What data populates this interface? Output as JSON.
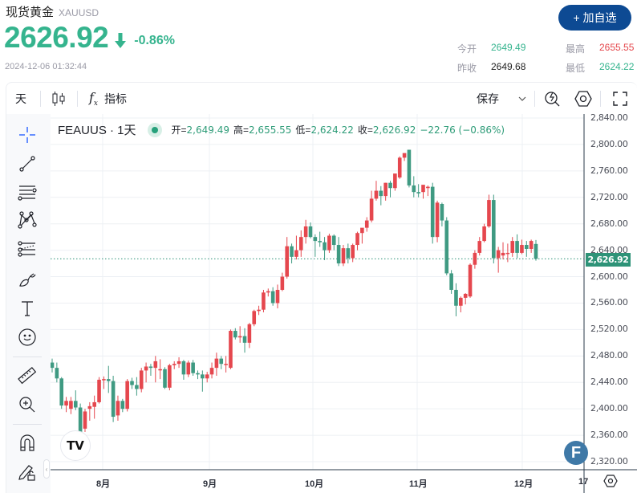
{
  "header": {
    "title": "现货黄金",
    "symbol": "XAUUSD",
    "price": "2626.92",
    "change_pct": "-0.86%",
    "timestamp": "2024-12-06 01:32:44",
    "add_watchlist_label": "+ 加自选",
    "stats": {
      "open_label": "今开",
      "open_value": "2649.49",
      "prev_close_label": "昨收",
      "prev_close_value": "2649.68",
      "high_label": "最高",
      "high_value": "2655.55",
      "low_label": "最低",
      "low_value": "2624.22"
    }
  },
  "colors": {
    "down": "#35b48e",
    "up": "#e5484d",
    "candle_up": "#e5474e",
    "candle_down": "#3f9a82",
    "brand": "#0d4a93"
  },
  "toolbar": {
    "interval_label": "天",
    "chart_type_icon": "candlestick-icon",
    "indicators_label": "指标",
    "save_label": "保存"
  },
  "left_tools": [
    "crosshair-icon",
    "trendline-icon",
    "horizontal-lines-icon",
    "pattern-icon",
    "fib-icon",
    "brush-icon",
    "text-icon",
    "emoji-icon",
    "ruler-icon",
    "zoom-in-icon",
    "magnet-icon",
    "lock-drawing-icon"
  ],
  "legend": {
    "name": "FEAUUS · 1天",
    "open_key": "开=",
    "open": "2,649.49",
    "high_key": "高=",
    "high": "2,655.55",
    "low_key": "低=",
    "low": "2,624.22",
    "close_key": "收=",
    "close": "2,626.92",
    "change": "−22.76 (−0.86%)"
  },
  "chart_data": {
    "type": "candlestick",
    "title": "FEAUUS · 1天",
    "y_ticks": [
      "2,840.00",
      "2,800.00",
      "2,760.00",
      "2,720.00",
      "2,680.00",
      "2,640.00",
      "2,600.00",
      "2,560.00",
      "2,520.00",
      "2,480.00",
      "2,440.00",
      "2,400.00",
      "2,360.00",
      "2,320.00"
    ],
    "x_ticks": [
      "8月",
      "9月",
      "10月",
      "11月",
      "12月",
      "17"
    ],
    "last_price_label": "2,626.92",
    "ylim": [
      2310,
      2845
    ],
    "convention": "red=up, green=down",
    "candles": [
      [
        2470,
        2476,
        2455,
        2462
      ],
      [
        2462,
        2470,
        2440,
        2446
      ],
      [
        2446,
        2448,
        2400,
        2405
      ],
      [
        2405,
        2418,
        2395,
        2412
      ],
      [
        2400,
        2418,
        2392,
        2412
      ],
      [
        2412,
        2428,
        2398,
        2402
      ],
      [
        2402,
        2408,
        2360,
        2365
      ],
      [
        2370,
        2400,
        2365,
        2396
      ],
      [
        2400,
        2410,
        2382,
        2404
      ],
      [
        2403,
        2420,
        2385,
        2410
      ],
      [
        2410,
        2448,
        2408,
        2444
      ],
      [
        2444,
        2449,
        2430,
        2445
      ],
      [
        2445,
        2465,
        2424,
        2442
      ],
      [
        2442,
        2450,
        2380,
        2388
      ],
      [
        2390,
        2420,
        2382,
        2412
      ],
      [
        2412,
        2415,
        2395,
        2400
      ],
      [
        2400,
        2445,
        2396,
        2442
      ],
      [
        2442,
        2447,
        2430,
        2436
      ],
      [
        2436,
        2448,
        2420,
        2430
      ],
      [
        2430,
        2462,
        2425,
        2458
      ],
      [
        2458,
        2470,
        2440,
        2464
      ],
      [
        2464,
        2468,
        2450,
        2462
      ],
      [
        2462,
        2480,
        2440,
        2472
      ],
      [
        2460,
        2475,
        2445,
        2460
      ],
      [
        2460,
        2463,
        2430,
        2432
      ],
      [
        2432,
        2468,
        2428,
        2466
      ],
      [
        2466,
        2472,
        2460,
        2468
      ],
      [
        2468,
        2478,
        2462,
        2472
      ],
      [
        2472,
        2474,
        2444,
        2452
      ],
      [
        2452,
        2473,
        2448,
        2470
      ],
      [
        2470,
        2474,
        2450,
        2454
      ],
      [
        2454,
        2458,
        2445,
        2452
      ],
      [
        2452,
        2458,
        2426,
        2446
      ],
      [
        2446,
        2456,
        2440,
        2452
      ],
      [
        2452,
        2470,
        2446,
        2462
      ],
      [
        2462,
        2485,
        2450,
        2476
      ],
      [
        2476,
        2480,
        2460,
        2468
      ],
      [
        2468,
        2480,
        2455,
        2468
      ],
      [
        2462,
        2520,
        2460,
        2518
      ],
      [
        2518,
        2522,
        2505,
        2508
      ],
      [
        2508,
        2525,
        2500,
        2510
      ],
      [
        2510,
        2522,
        2485,
        2500
      ],
      [
        2500,
        2530,
        2492,
        2528
      ],
      [
        2528,
        2550,
        2525,
        2548
      ],
      [
        2548,
        2556,
        2542,
        2550
      ],
      [
        2550,
        2580,
        2546,
        2576
      ],
      [
        2576,
        2582,
        2570,
        2578
      ],
      [
        2578,
        2584,
        2556,
        2560
      ],
      [
        2560,
        2588,
        2552,
        2580
      ],
      [
        2580,
        2606,
        2578,
        2600
      ],
      [
        2600,
        2660,
        2597,
        2646
      ],
      [
        2646,
        2650,
        2620,
        2630
      ],
      [
        2630,
        2662,
        2626,
        2640
      ],
      [
        2640,
        2670,
        2630,
        2660
      ],
      [
        2660,
        2686,
        2650,
        2676
      ],
      [
        2676,
        2682,
        2658,
        2660
      ],
      [
        2660,
        2664,
        2630,
        2654
      ],
      [
        2654,
        2668,
        2645,
        2652
      ],
      [
        2652,
        2660,
        2625,
        2640
      ],
      [
        2640,
        2665,
        2636,
        2662
      ],
      [
        2662,
        2664,
        2640,
        2648
      ],
      [
        2648,
        2660,
        2616,
        2620
      ],
      [
        2620,
        2648,
        2616,
        2643
      ],
      [
        2643,
        2650,
        2620,
        2628
      ],
      [
        2628,
        2650,
        2622,
        2648
      ],
      [
        2648,
        2668,
        2640,
        2666
      ],
      [
        2666,
        2672,
        2650,
        2674
      ],
      [
        2674,
        2690,
        2668,
        2685
      ],
      [
        2685,
        2730,
        2682,
        2718
      ],
      [
        2718,
        2745,
        2715,
        2730
      ],
      [
        2730,
        2737,
        2708,
        2722
      ],
      [
        2722,
        2742,
        2715,
        2742
      ],
      [
        2742,
        2745,
        2720,
        2734
      ],
      [
        2734,
        2752,
        2730,
        2756
      ],
      [
        2750,
        2782,
        2748,
        2780
      ],
      [
        2780,
        2786,
        2775,
        2787
      ],
      [
        2792,
        2792,
        2735,
        2738
      ],
      [
        2738,
        2752,
        2720,
        2728
      ],
      [
        2728,
        2740,
        2720,
        2726
      ],
      [
        2728,
        2730,
        2718,
        2739
      ],
      [
        2734,
        2738,
        2722,
        2736
      ],
      [
        2736,
        2742,
        2650,
        2660
      ],
      [
        2660,
        2715,
        2652,
        2712
      ],
      [
        2710,
        2712,
        2676,
        2685
      ],
      [
        2685,
        2690,
        2602,
        2605
      ],
      [
        2605,
        2610,
        2574,
        2580
      ],
      [
        2580,
        2590,
        2540,
        2556
      ],
      [
        2556,
        2570,
        2546,
        2568
      ],
      [
        2568,
        2575,
        2558,
        2574
      ],
      [
        2570,
        2620,
        2568,
        2618
      ],
      [
        2618,
        2640,
        2612,
        2636
      ],
      [
        2636,
        2660,
        2632,
        2654
      ],
      [
        2654,
        2680,
        2652,
        2676
      ],
      [
        2676,
        2724,
        2674,
        2716
      ],
      [
        2716,
        2724,
        2620,
        2628
      ],
      [
        2628,
        2645,
        2606,
        2640
      ],
      [
        2632,
        2652,
        2626,
        2636
      ],
      [
        2636,
        2650,
        2622,
        2636
      ],
      [
        2636,
        2660,
        2630,
        2654
      ],
      [
        2654,
        2664,
        2628,
        2636
      ],
      [
        2636,
        2656,
        2634,
        2648
      ],
      [
        2648,
        2654,
        2630,
        2642
      ],
      [
        2642,
        2656,
        2636,
        2654
      ],
      [
        2649.49,
        2655.55,
        2624.22,
        2626.92
      ]
    ]
  },
  "badges": {
    "tv_logo": "TV",
    "f_badge": "F"
  }
}
